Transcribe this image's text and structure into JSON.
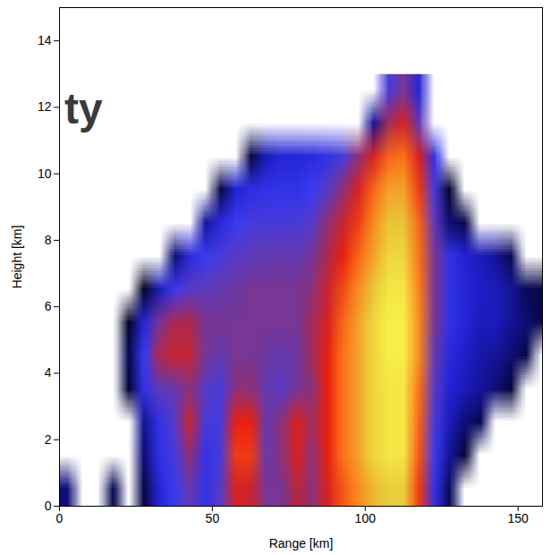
{
  "chart_data": {
    "type": "heatmap",
    "title": "ty",
    "x_label": "Range [km]",
    "y_label": "Height [km]",
    "xlim": [
      0,
      158
    ],
    "ylim": [
      0,
      15
    ],
    "xticks": [
      0,
      50,
      100,
      150
    ],
    "yticks": [
      0,
      2,
      4,
      6,
      8,
      10,
      12,
      14
    ],
    "zlim": [
      0,
      60
    ],
    "cell_x": [
      2.5,
      7.5,
      12.5,
      17.5,
      22.5,
      27.5,
      32.5,
      37.5,
      42.5,
      47.5,
      52.5,
      57.5,
      62.5,
      67.5,
      72.5,
      77.5,
      82.5,
      87.5,
      92.5,
      97.5,
      102.5,
      107.5,
      112.5,
      117.5,
      122.5,
      127.5,
      132.5,
      137.5,
      142.5,
      147.5,
      152.5,
      157.5
    ],
    "cell_y": [
      0.5,
      1.5,
      2.5,
      3.5,
      4.5,
      5.5,
      6.5,
      7.5,
      8.5,
      9.5,
      10.5,
      11.5,
      12.5
    ],
    "cells": [
      [
        8,
        null,
        null,
        6,
        null,
        5,
        15,
        20,
        26,
        18,
        24,
        38,
        36,
        28,
        28,
        34,
        30,
        38,
        44,
        48,
        52,
        54,
        54,
        42,
        18,
        6,
        null,
        null,
        null,
        null,
        null,
        null
      ],
      [
        null,
        null,
        null,
        null,
        null,
        8,
        18,
        22,
        30,
        18,
        22,
        42,
        42,
        26,
        30,
        38,
        30,
        40,
        46,
        50,
        55,
        57,
        57,
        44,
        20,
        10,
        4,
        null,
        null,
        null,
        null,
        null
      ],
      [
        null,
        null,
        null,
        null,
        null,
        10,
        18,
        24,
        36,
        22,
        22,
        40,
        40,
        26,
        30,
        38,
        32,
        40,
        46,
        50,
        55,
        57,
        57,
        45,
        22,
        12,
        8,
        6,
        null,
        null,
        null,
        null
      ],
      [
        null,
        null,
        null,
        null,
        4,
        18,
        25,
        26,
        30,
        24,
        22,
        30,
        30,
        26,
        24,
        28,
        30,
        40,
        46,
        50,
        55,
        57,
        57,
        46,
        24,
        14,
        12,
        10,
        8,
        4,
        null,
        null
      ],
      [
        null,
        null,
        null,
        null,
        6,
        20,
        33,
        36,
        35,
        28,
        26,
        28,
        28,
        27,
        26,
        27,
        32,
        40,
        46,
        50,
        55,
        58,
        58,
        48,
        26,
        16,
        13,
        11,
        10,
        8,
        5,
        null
      ],
      [
        null,
        null,
        null,
        null,
        3,
        15,
        28,
        33,
        33,
        28,
        28,
        28,
        28,
        28,
        28,
        28,
        32,
        38,
        45,
        50,
        55,
        58,
        58,
        48,
        28,
        18,
        15,
        12,
        12,
        10,
        8,
        5
      ],
      [
        null,
        null,
        null,
        null,
        null,
        3,
        12,
        20,
        24,
        25,
        26,
        27,
        28,
        28,
        28,
        28,
        30,
        36,
        43,
        48,
        53,
        57,
        57,
        47,
        28,
        18,
        15,
        13,
        12,
        10,
        6,
        5
      ],
      [
        null,
        null,
        null,
        null,
        null,
        null,
        null,
        8,
        16,
        20,
        22,
        24,
        25,
        26,
        26,
        26,
        28,
        33,
        40,
        45,
        50,
        55,
        55,
        46,
        28,
        18,
        14,
        12,
        10,
        6,
        null,
        null
      ],
      [
        null,
        null,
        null,
        null,
        null,
        null,
        null,
        null,
        null,
        10,
        16,
        20,
        22,
        22,
        22,
        22,
        24,
        30,
        36,
        42,
        48,
        53,
        53,
        45,
        25,
        8,
        5,
        null,
        null,
        null,
        null,
        null
      ],
      [
        null,
        null,
        null,
        null,
        null,
        null,
        null,
        null,
        null,
        null,
        5,
        14,
        17,
        18,
        18,
        18,
        20,
        24,
        30,
        38,
        45,
        50,
        50,
        42,
        22,
        3,
        null,
        null,
        null,
        null,
        null,
        null
      ],
      [
        null,
        null,
        null,
        null,
        null,
        null,
        null,
        null,
        null,
        null,
        null,
        null,
        5,
        12,
        15,
        15,
        16,
        18,
        22,
        30,
        38,
        45,
        46,
        38,
        18,
        null,
        null,
        null,
        null,
        null,
        null,
        null
      ],
      [
        null,
        null,
        null,
        null,
        null,
        null,
        null,
        null,
        null,
        null,
        null,
        null,
        null,
        null,
        null,
        null,
        null,
        null,
        null,
        null,
        10,
        32,
        38,
        25,
        null,
        null,
        null,
        null,
        null,
        null,
        null,
        null
      ],
      [
        null,
        null,
        null,
        null,
        null,
        null,
        null,
        null,
        null,
        null,
        null,
        null,
        null,
        null,
        null,
        null,
        null,
        null,
        null,
        null,
        null,
        22,
        28,
        15,
        null,
        null,
        null,
        null,
        null,
        null,
        null,
        null
      ]
    ]
  }
}
